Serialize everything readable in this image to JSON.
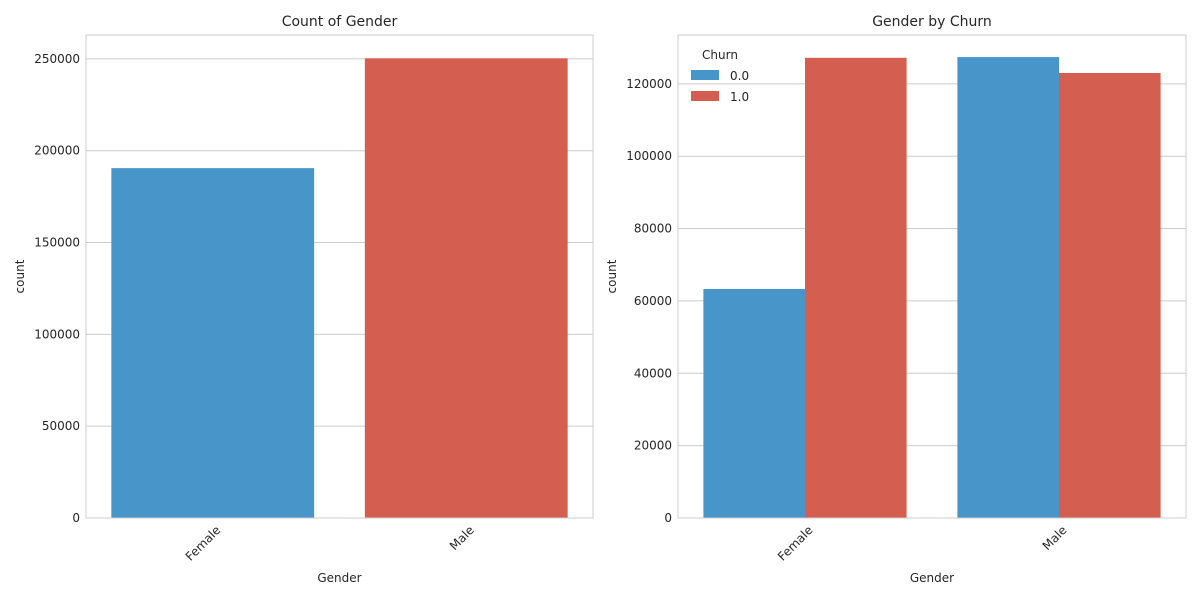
{
  "chart_data": [
    {
      "type": "bar",
      "title": "Count of Gender",
      "xlabel": "Gender",
      "ylabel": "count",
      "categories": [
        "Female",
        "Male"
      ],
      "values": [
        190500,
        250300
      ],
      "bar_colors": [
        "#4895c9",
        "#d45e50"
      ],
      "ylim": [
        0,
        263000
      ],
      "yticks": [
        0,
        50000,
        100000,
        150000,
        200000,
        250000
      ],
      "grid": "horizontal"
    },
    {
      "type": "bar",
      "title": "Gender by Churn",
      "xlabel": "Gender",
      "ylabel": "count",
      "categories": [
        "Female",
        "Male"
      ],
      "legend_title": "Churn",
      "legend_position": "top-left",
      "series": [
        {
          "name": "0.0",
          "color": "#4895c9",
          "values": [
            63300,
            127400
          ]
        },
        {
          "name": "1.0",
          "color": "#d45e50",
          "values": [
            127200,
            123000
          ]
        }
      ],
      "ylim": [
        0,
        133500
      ],
      "yticks": [
        0,
        20000,
        40000,
        60000,
        80000,
        100000,
        120000
      ],
      "grid": "horizontal"
    }
  ]
}
